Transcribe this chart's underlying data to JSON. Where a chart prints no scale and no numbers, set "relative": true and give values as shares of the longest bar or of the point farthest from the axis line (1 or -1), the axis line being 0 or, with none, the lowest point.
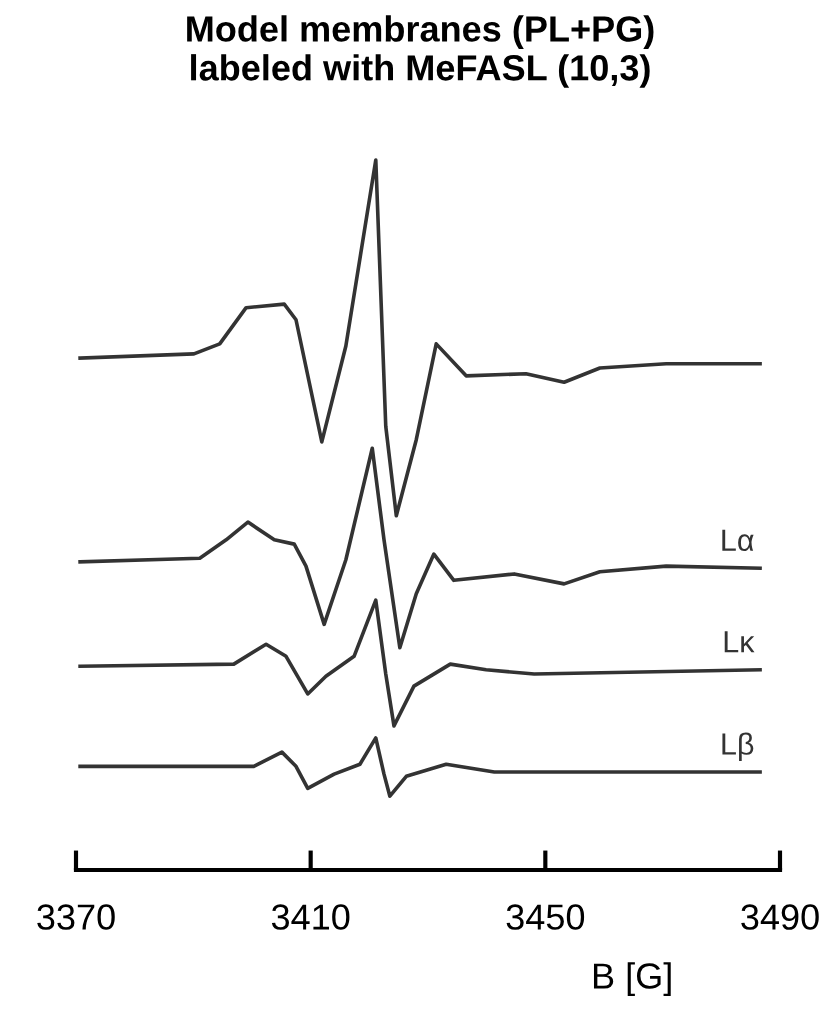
{
  "chart_data": {
    "type": "line",
    "title": "Model membranes (PL+PG)\nlabeled with MeFASL (10,3)",
    "xlabel": "B [G]",
    "relative": true,
    "xlim": [
      3370,
      3490
    ],
    "xticks": [
      3370,
      3410,
      3450,
      3490
    ],
    "grid": false,
    "legend": false,
    "marker": "none",
    "line_style": "solid",
    "series": [
      {
        "color": "#333333",
        "x": [
          3370.7,
          3390.1,
          3394.5,
          3399.0,
          3405.5,
          3407.5,
          3411.9,
          3416.0,
          3421.1,
          3422.8,
          3424.6,
          3428.0,
          3431.4,
          3436.5,
          3446.7,
          3453.2,
          3459.3,
          3470.6,
          3486.6
        ],
        "values": [
          0.721,
          0.727,
          0.741,
          0.792,
          0.797,
          0.775,
          0.603,
          0.738,
          1.0,
          0.625,
          0.499,
          0.606,
          0.741,
          0.696,
          0.699,
          0.687,
          0.707,
          0.713,
          0.713
        ]
      },
      {
        "name": "Lα",
        "color": "#333333",
        "x": [
          3370.7,
          3391.1,
          3395.6,
          3399.3,
          3403.8,
          3407.2,
          3409.2,
          3412.3,
          3416.0,
          3420.5,
          3422.5,
          3425.2,
          3428.0,
          3431.0,
          3434.4,
          3444.7,
          3453.2,
          3459.3,
          3470.6,
          3486.6
        ],
        "values": [
          0.434,
          0.439,
          0.465,
          0.49,
          0.465,
          0.459,
          0.428,
          0.346,
          0.437,
          0.594,
          0.465,
          0.313,
          0.389,
          0.445,
          0.408,
          0.417,
          0.403,
          0.42,
          0.428,
          0.425
        ]
      },
      {
        "name": "Lκ",
        "color": "#333333",
        "x": [
          3370.7,
          3396.9,
          3402.4,
          3405.8,
          3409.5,
          3412.6,
          3417.4,
          3421.1,
          3422.8,
          3424.2,
          3427.6,
          3433.8,
          3439.9,
          3448.1,
          3486.6
        ],
        "values": [
          0.287,
          0.29,
          0.318,
          0.301,
          0.248,
          0.273,
          0.301,
          0.38,
          0.276,
          0.203,
          0.259,
          0.29,
          0.282,
          0.276,
          0.282
        ]
      },
      {
        "name": "Lβ",
        "color": "#333333",
        "x": [
          3370.7,
          3400.3,
          3405.1,
          3407.5,
          3409.5,
          3414.0,
          3418.4,
          3421.1,
          3422.5,
          3423.5,
          3426.3,
          3433.1,
          3441.3,
          3486.6
        ],
        "values": [
          0.146,
          0.146,
          0.166,
          0.146,
          0.115,
          0.135,
          0.149,
          0.186,
          0.135,
          0.104,
          0.132,
          0.149,
          0.138,
          0.138
        ]
      }
    ]
  }
}
